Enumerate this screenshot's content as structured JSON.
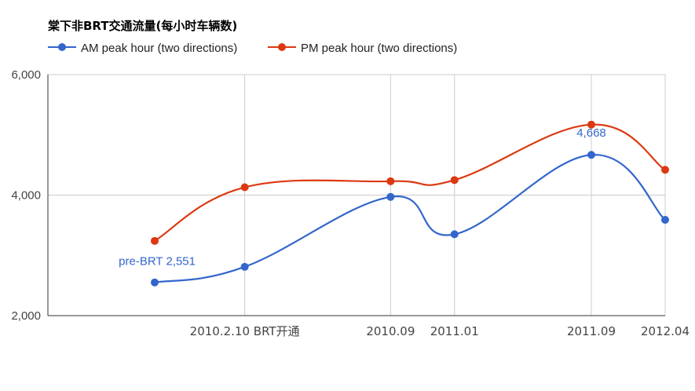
{
  "chart_data": {
    "type": "line",
    "title": "棠下非BRT交通流量(每小时车辆数)",
    "legend_position": "top-left",
    "grid": true,
    "smooth": true,
    "categories": [
      "",
      "2010.2.10 BRT开通",
      "2010.09",
      "2011.01",
      "2011.09",
      "2012.04"
    ],
    "x": [
      0,
      1,
      2.62,
      3.33,
      4.85,
      5.67
    ],
    "ylim": [
      2000,
      6000
    ],
    "yticks": [
      {
        "value": 2000,
        "label": "2,000"
      },
      {
        "value": 4000,
        "label": "4,000"
      },
      {
        "value": 6000,
        "label": "6,000"
      }
    ],
    "xlabel": "",
    "ylabel": "",
    "series": [
      {
        "name": "AM peak hour (two directions)",
        "color": "#3366cc",
        "values": [
          2551,
          2810,
          3970,
          3350,
          4668,
          3590
        ]
      },
      {
        "name": "PM peak hour (two directions)",
        "color": "#dc3912",
        "values": [
          3240,
          4130,
          4230,
          4250,
          5170,
          4420
        ]
      }
    ],
    "annotations": [
      {
        "series": 0,
        "point": 0,
        "text": "pre-BRT 2,551",
        "anchor": "end",
        "dx": 52,
        "dy": -22
      },
      {
        "series": 0,
        "point": 4,
        "text": "4,668",
        "anchor": "middle",
        "dx": 0,
        "dy": -23
      }
    ]
  }
}
